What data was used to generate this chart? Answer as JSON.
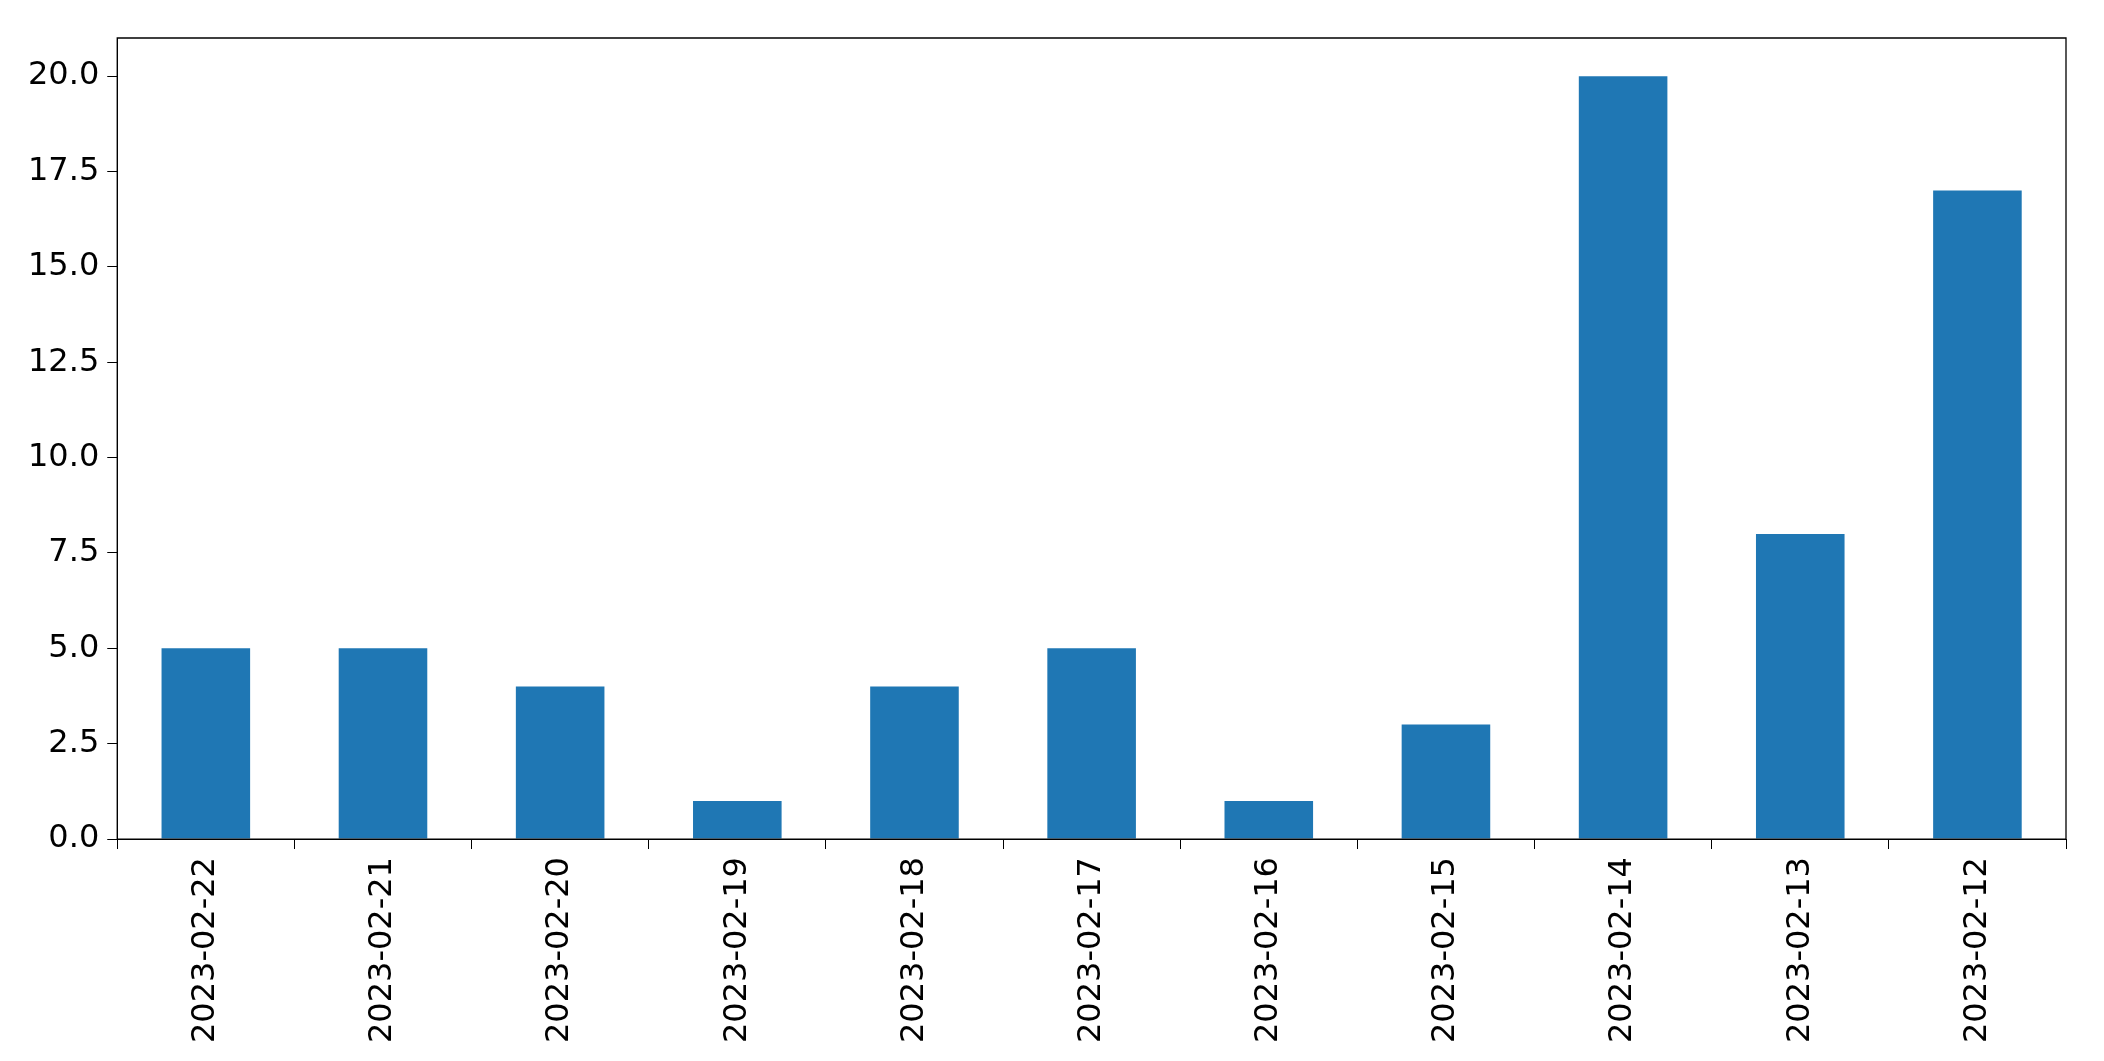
{
  "chart_data": {
    "type": "bar",
    "categories": [
      "2023-02-22",
      "2023-02-21",
      "2023-02-20",
      "2023-02-19",
      "2023-02-18",
      "2023-02-17",
      "2023-02-16",
      "2023-02-15",
      "2023-02-14",
      "2023-02-13",
      "2023-02-12"
    ],
    "values": [
      5,
      5,
      4,
      1,
      4,
      5,
      1,
      3,
      20,
      8,
      17
    ],
    "color": "#1f77b4",
    "ylim": [
      0,
      21
    ],
    "yticks": [
      {
        "value": 0,
        "label": "0.0"
      },
      {
        "value": 2.5,
        "label": "2.5"
      },
      {
        "value": 5,
        "label": "5.0"
      },
      {
        "value": 7.5,
        "label": "7.5"
      },
      {
        "value": 10,
        "label": "10.0"
      },
      {
        "value": 12.5,
        "label": "12.5"
      },
      {
        "value": 15,
        "label": "15.0"
      },
      {
        "value": 17.5,
        "label": "17.5"
      },
      {
        "value": 20,
        "label": "20.0"
      }
    ],
    "grid": false,
    "legend": false
  }
}
